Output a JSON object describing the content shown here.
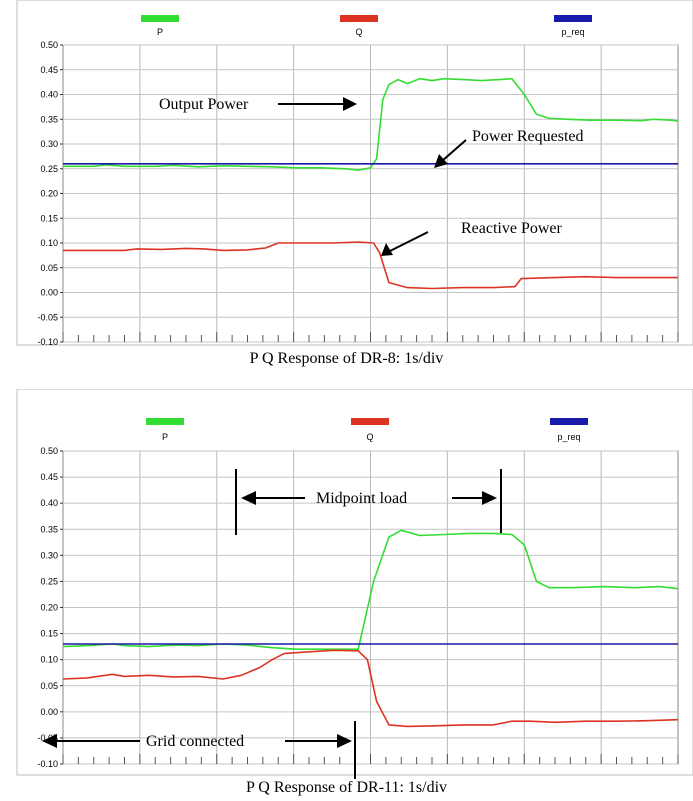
{
  "charts": [
    {
      "caption": "P Q Response of DR-8: 1s/div",
      "chart_data": {
        "type": "line",
        "x_range": [
          0,
          10
        ],
        "ylim": [
          -0.1,
          0.5
        ],
        "yticks": [
          "0.50",
          "0.45",
          "0.40",
          "0.35",
          "0.30",
          "0.25",
          "0.20",
          "0.15",
          "0.10",
          "0.05",
          "0.00",
          "-0.05",
          "-0.10"
        ],
        "grid": true,
        "legend": "top",
        "series": [
          {
            "name": "P",
            "color": "#33dd33",
            "points": [
              [
                0,
                0.255
              ],
              [
                0.5,
                0.255
              ],
              [
                0.7,
                0.258
              ],
              [
                1,
                0.255
              ],
              [
                1.5,
                0.255
              ],
              [
                1.8,
                0.257
              ],
              [
                2.2,
                0.254
              ],
              [
                2.6,
                0.256
              ],
              [
                3,
                0.255
              ],
              [
                3.4,
                0.254
              ],
              [
                3.8,
                0.252
              ],
              [
                4.2,
                0.252
              ],
              [
                4.6,
                0.25
              ],
              [
                4.8,
                0.247
              ],
              [
                5,
                0.252
              ],
              [
                5.1,
                0.27
              ],
              [
                5.2,
                0.39
              ],
              [
                5.3,
                0.42
              ],
              [
                5.45,
                0.43
              ],
              [
                5.6,
                0.422
              ],
              [
                5.8,
                0.432
              ],
              [
                6,
                0.428
              ],
              [
                6.2,
                0.432
              ],
              [
                6.5,
                0.43
              ],
              [
                6.8,
                0.428
              ],
              [
                7.1,
                0.43
              ],
              [
                7.3,
                0.432
              ],
              [
                7.5,
                0.4
              ],
              [
                7.7,
                0.36
              ],
              [
                7.9,
                0.352
              ],
              [
                8.2,
                0.35
              ],
              [
                8.6,
                0.348
              ],
              [
                9,
                0.348
              ],
              [
                9.4,
                0.347
              ],
              [
                9.6,
                0.35
              ],
              [
                9.9,
                0.348
              ],
              [
                10,
                0.346
              ]
            ]
          },
          {
            "name": "Q",
            "color": "#dd3322",
            "points": [
              [
                0,
                0.085
              ],
              [
                0.4,
                0.085
              ],
              [
                0.8,
                0.085
              ],
              [
                1,
                0.085
              ],
              [
                1.2,
                0.088
              ],
              [
                1.6,
                0.087
              ],
              [
                2,
                0.089
              ],
              [
                2.3,
                0.088
              ],
              [
                2.6,
                0.085
              ],
              [
                3,
                0.086
              ],
              [
                3.3,
                0.09
              ],
              [
                3.5,
                0.1
              ],
              [
                4,
                0.1
              ],
              [
                4.4,
                0.1
              ],
              [
                4.8,
                0.102
              ],
              [
                5.05,
                0.1
              ],
              [
                5.15,
                0.08
              ],
              [
                5.3,
                0.02
              ],
              [
                5.6,
                0.01
              ],
              [
                6,
                0.008
              ],
              [
                6.5,
                0.01
              ],
              [
                7,
                0.01
              ],
              [
                7.35,
                0.012
              ],
              [
                7.45,
                0.028
              ],
              [
                8,
                0.03
              ],
              [
                8.5,
                0.032
              ],
              [
                9,
                0.03
              ],
              [
                9.5,
                0.03
              ],
              [
                10,
                0.03
              ]
            ]
          },
          {
            "name": "p_req",
            "color": "#1a1aaa",
            "points": [
              [
                0,
                0.26
              ],
              [
                10,
                0.26
              ]
            ]
          }
        ]
      },
      "annotations": [
        {
          "label": "Output Power"
        },
        {
          "label": "Power Requested"
        },
        {
          "label": "Reactive Power"
        }
      ]
    },
    {
      "caption": "P Q Response of DR-11: 1s/div",
      "chart_data": {
        "type": "line",
        "x_range": [
          0,
          10
        ],
        "ylim": [
          -0.1,
          0.5
        ],
        "yticks": [
          "0.50",
          "0.45",
          "0.40",
          "0.35",
          "0.30",
          "0.25",
          "0.20",
          "0.15",
          "0.10",
          "0.05",
          "0.00",
          "-0.05",
          "-0.10"
        ],
        "grid": true,
        "legend": "top",
        "series": [
          {
            "name": "P",
            "color": "#33dd33",
            "points": [
              [
                0,
                0.125
              ],
              [
                0.4,
                0.127
              ],
              [
                0.8,
                0.13
              ],
              [
                1,
                0.127
              ],
              [
                1.4,
                0.125
              ],
              [
                1.8,
                0.128
              ],
              [
                2.2,
                0.127
              ],
              [
                2.6,
                0.13
              ],
              [
                3,
                0.128
              ],
              [
                3.4,
                0.123
              ],
              [
                3.8,
                0.12
              ],
              [
                4.2,
                0.12
              ],
              [
                4.6,
                0.12
              ],
              [
                4.8,
                0.12
              ],
              [
                5.05,
                0.25
              ],
              [
                5.3,
                0.335
              ],
              [
                5.5,
                0.348
              ],
              [
                5.8,
                0.338
              ],
              [
                6.2,
                0.34
              ],
              [
                6.6,
                0.342
              ],
              [
                7,
                0.342
              ],
              [
                7.3,
                0.34
              ],
              [
                7.5,
                0.32
              ],
              [
                7.7,
                0.25
              ],
              [
                7.9,
                0.238
              ],
              [
                8.3,
                0.238
              ],
              [
                8.8,
                0.24
              ],
              [
                9.3,
                0.238
              ],
              [
                9.7,
                0.24
              ],
              [
                10,
                0.236
              ]
            ]
          },
          {
            "name": "Q",
            "color": "#dd3322",
            "points": [
              [
                0,
                0.063
              ],
              [
                0.4,
                0.065
              ],
              [
                0.8,
                0.072
              ],
              [
                1,
                0.068
              ],
              [
                1.4,
                0.07
              ],
              [
                1.8,
                0.067
              ],
              [
                2.2,
                0.068
              ],
              [
                2.6,
                0.063
              ],
              [
                2.9,
                0.07
              ],
              [
                3.2,
                0.085
              ],
              [
                3.4,
                0.1
              ],
              [
                3.6,
                0.112
              ],
              [
                4,
                0.115
              ],
              [
                4.4,
                0.118
              ],
              [
                4.8,
                0.117
              ],
              [
                4.95,
                0.1
              ],
              [
                5.1,
                0.02
              ],
              [
                5.3,
                -0.025
              ],
              [
                5.6,
                -0.028
              ],
              [
                6,
                -0.027
              ],
              [
                6.5,
                -0.025
              ],
              [
                7,
                -0.025
              ],
              [
                7.3,
                -0.018
              ],
              [
                7.6,
                -0.018
              ],
              [
                8,
                -0.02
              ],
              [
                8.5,
                -0.018
              ],
              [
                9,
                -0.018
              ],
              [
                9.5,
                -0.017
              ],
              [
                10,
                -0.015
              ]
            ]
          },
          {
            "name": "p_req",
            "color": "#1a1aaa",
            "points": [
              [
                0,
                0.13
              ],
              [
                10,
                0.13
              ]
            ]
          }
        ]
      },
      "annotations": [
        {
          "label": "Midpoint load"
        },
        {
          "label": "Grid connected"
        }
      ]
    }
  ]
}
